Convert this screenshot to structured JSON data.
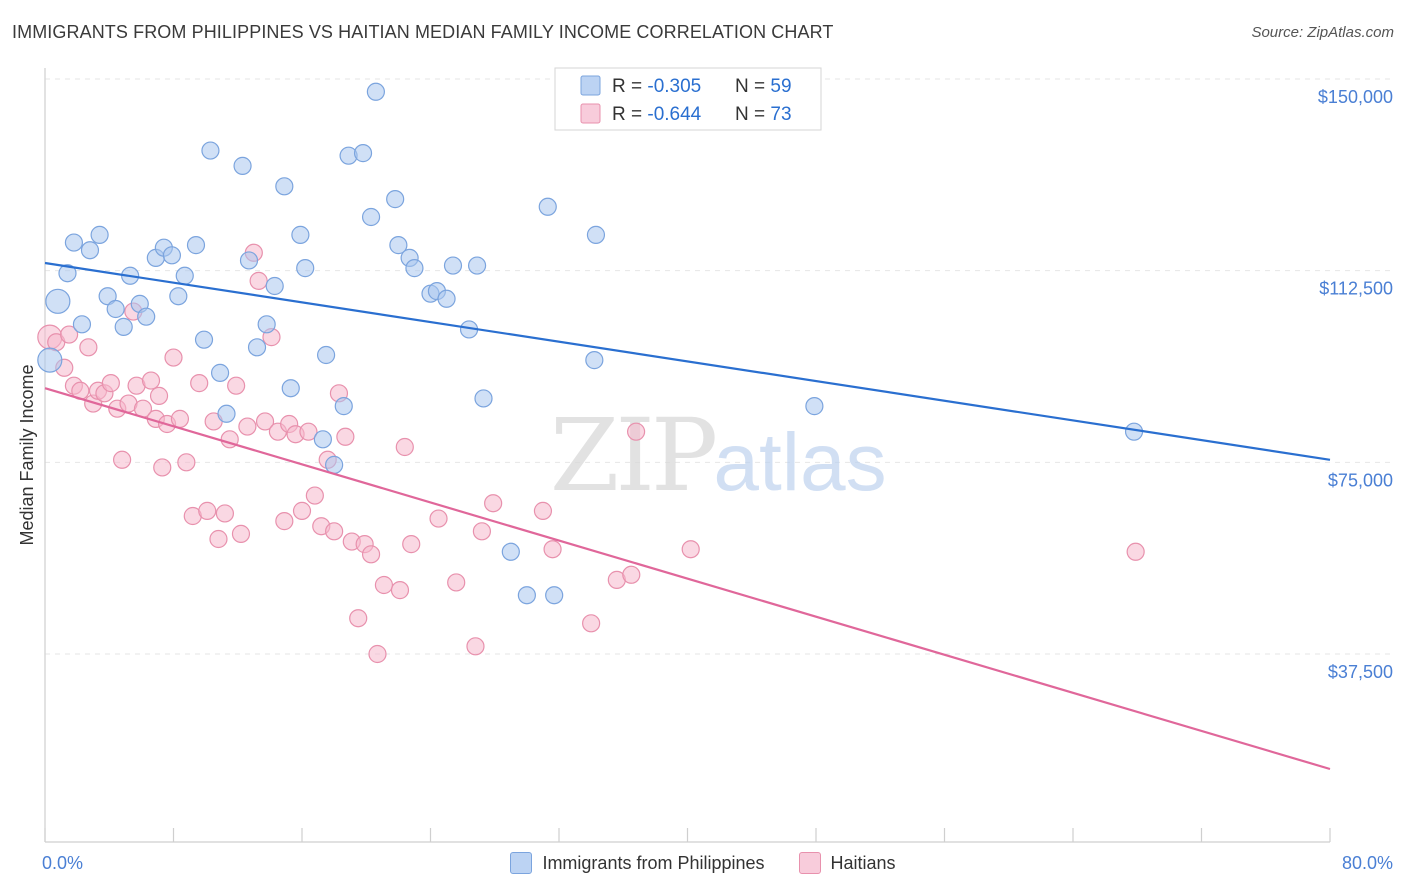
{
  "title": "IMMIGRANTS FROM PHILIPPINES VS HAITIAN MEDIAN FAMILY INCOME CORRELATION CHART",
  "source": "Source: ZipAtlas.com",
  "watermark": {
    "zip": "ZIP",
    "atlas": "atlas"
  },
  "colors": {
    "blue_fill": "#a9c6ef",
    "blue_stroke": "#7ba4de",
    "blue_line": "#2a6fd0",
    "pink_fill": "#f5b8cc",
    "pink_stroke": "#e891ad",
    "pink_line": "#e0679a",
    "tick_blue": "#4a7fd4",
    "grid": "#e6e6e6"
  },
  "legend_top": {
    "rows": [
      {
        "series": "Immigrants from Philippines",
        "r_label": "R = ",
        "r_value": "-0.305",
        "n_label": "N = ",
        "n_value": "59"
      },
      {
        "series": "Haitians",
        "r_label": "R = ",
        "r_value": "-0.644",
        "n_label": "N = ",
        "n_value": "73"
      }
    ]
  },
  "chart_data": {
    "type": "scatter",
    "title": "IMMIGRANTS FROM PHILIPPINES VS HAITIAN MEDIAN FAMILY INCOME CORRELATION CHART",
    "xlabel": "",
    "ylabel": "Median Family Income",
    "xlim": [
      0,
      80
    ],
    "ylim": [
      0,
      155000
    ],
    "x_tick_labels": [
      "0.0%",
      "80.0%"
    ],
    "y_ticks": [
      37500,
      75000,
      112500,
      150000
    ],
    "y_tick_labels": [
      "$37,500",
      "$75,000",
      "$112,500",
      "$150,000"
    ],
    "grid": true,
    "legend_position": "top-center",
    "series": [
      {
        "name": "Immigrants from Philippines",
        "color": "#a9c6ef",
        "r": -0.305,
        "n": 59,
        "trend": {
          "x": [
            0,
            80
          ],
          "y": [
            114000,
            75500
          ]
        },
        "points": [
          {
            "x": 0.3,
            "y": 95000,
            "big": true
          },
          {
            "x": 0.8,
            "y": 106500,
            "big": true
          },
          {
            "x": 1.4,
            "y": 112000
          },
          {
            "x": 1.8,
            "y": 118000
          },
          {
            "x": 2.3,
            "y": 102000
          },
          {
            "x": 2.8,
            "y": 116500
          },
          {
            "x": 3.4,
            "y": 119500
          },
          {
            "x": 3.9,
            "y": 107500
          },
          {
            "x": 4.4,
            "y": 105000
          },
          {
            "x": 4.9,
            "y": 101500
          },
          {
            "x": 5.3,
            "y": 111500
          },
          {
            "x": 5.9,
            "y": 106000
          },
          {
            "x": 6.3,
            "y": 103500
          },
          {
            "x": 6.9,
            "y": 115000
          },
          {
            "x": 7.4,
            "y": 117000
          },
          {
            "x": 7.9,
            "y": 115500
          },
          {
            "x": 8.3,
            "y": 107500
          },
          {
            "x": 8.7,
            "y": 111500
          },
          {
            "x": 9.4,
            "y": 117500
          },
          {
            "x": 9.9,
            "y": 99000
          },
          {
            "x": 10.3,
            "y": 136000
          },
          {
            "x": 10.9,
            "y": 92500
          },
          {
            "x": 11.3,
            "y": 84500
          },
          {
            "x": 12.3,
            "y": 133000
          },
          {
            "x": 12.7,
            "y": 114500
          },
          {
            "x": 13.2,
            "y": 97500
          },
          {
            "x": 13.8,
            "y": 102000
          },
          {
            "x": 14.3,
            "y": 109500
          },
          {
            "x": 14.9,
            "y": 129000
          },
          {
            "x": 15.3,
            "y": 89500
          },
          {
            "x": 15.9,
            "y": 119500
          },
          {
            "x": 16.2,
            "y": 113000
          },
          {
            "x": 17.5,
            "y": 96000
          },
          {
            "x": 18.0,
            "y": 74500
          },
          {
            "x": 18.6,
            "y": 86000
          },
          {
            "x": 18.9,
            "y": 135000
          },
          {
            "x": 19.8,
            "y": 135500
          },
          {
            "x": 20.3,
            "y": 123000
          },
          {
            "x": 20.6,
            "y": 147500
          },
          {
            "x": 21.8,
            "y": 126500
          },
          {
            "x": 22.0,
            "y": 117500
          },
          {
            "x": 22.7,
            "y": 115000
          },
          {
            "x": 23.0,
            "y": 113000
          },
          {
            "x": 24.0,
            "y": 108000
          },
          {
            "x": 24.4,
            "y": 108500
          },
          {
            "x": 25.0,
            "y": 107000
          },
          {
            "x": 25.4,
            "y": 113500
          },
          {
            "x": 26.4,
            "y": 101000
          },
          {
            "x": 26.9,
            "y": 113500
          },
          {
            "x": 27.3,
            "y": 87500
          },
          {
            "x": 29.0,
            "y": 57500
          },
          {
            "x": 30.0,
            "y": 49000
          },
          {
            "x": 31.3,
            "y": 125000
          },
          {
            "x": 31.7,
            "y": 49000
          },
          {
            "x": 34.2,
            "y": 95000
          },
          {
            "x": 34.3,
            "y": 119500
          },
          {
            "x": 47.9,
            "y": 86000
          },
          {
            "x": 67.8,
            "y": 81000
          },
          {
            "x": 17.3,
            "y": 79500
          }
        ]
      },
      {
        "name": "Haitians",
        "color": "#f5b8cc",
        "r": -0.644,
        "n": 73,
        "trend": {
          "x": [
            0,
            80
          ],
          "y": [
            89500,
            15000
          ]
        },
        "points": [
          {
            "x": 0.3,
            "y": 99500,
            "big": true
          },
          {
            "x": 0.7,
            "y": 98500
          },
          {
            "x": 1.2,
            "y": 93500
          },
          {
            "x": 1.5,
            "y": 100000
          },
          {
            "x": 1.8,
            "y": 90000
          },
          {
            "x": 2.2,
            "y": 89000
          },
          {
            "x": 2.7,
            "y": 97500
          },
          {
            "x": 3.0,
            "y": 86500
          },
          {
            "x": 3.3,
            "y": 89000
          },
          {
            "x": 3.7,
            "y": 88500
          },
          {
            "x": 4.1,
            "y": 90500
          },
          {
            "x": 4.5,
            "y": 85500
          },
          {
            "x": 4.8,
            "y": 75500
          },
          {
            "x": 5.2,
            "y": 86500
          },
          {
            "x": 5.5,
            "y": 104500
          },
          {
            "x": 5.7,
            "y": 90000
          },
          {
            "x": 6.1,
            "y": 85500
          },
          {
            "x": 6.6,
            "y": 91000
          },
          {
            "x": 6.9,
            "y": 83500
          },
          {
            "x": 7.3,
            "y": 74000
          },
          {
            "x": 7.6,
            "y": 82500
          },
          {
            "x": 8.0,
            "y": 95500
          },
          {
            "x": 8.4,
            "y": 83500
          },
          {
            "x": 8.8,
            "y": 75000
          },
          {
            "x": 9.2,
            "y": 64500
          },
          {
            "x": 9.6,
            "y": 90500
          },
          {
            "x": 10.1,
            "y": 65500
          },
          {
            "x": 10.5,
            "y": 83000
          },
          {
            "x": 10.8,
            "y": 60000
          },
          {
            "x": 11.2,
            "y": 65000
          },
          {
            "x": 11.5,
            "y": 79500
          },
          {
            "x": 11.9,
            "y": 90000
          },
          {
            "x": 12.2,
            "y": 61000
          },
          {
            "x": 12.6,
            "y": 82000
          },
          {
            "x": 13.0,
            "y": 116000
          },
          {
            "x": 13.3,
            "y": 110500
          },
          {
            "x": 13.7,
            "y": 83000
          },
          {
            "x": 14.1,
            "y": 99500
          },
          {
            "x": 14.5,
            "y": 81000
          },
          {
            "x": 14.9,
            "y": 63500
          },
          {
            "x": 15.2,
            "y": 82500
          },
          {
            "x": 15.6,
            "y": 80500
          },
          {
            "x": 16.0,
            "y": 65500
          },
          {
            "x": 16.4,
            "y": 81000
          },
          {
            "x": 16.8,
            "y": 68500
          },
          {
            "x": 17.2,
            "y": 62500
          },
          {
            "x": 17.6,
            "y": 75500
          },
          {
            "x": 18.0,
            "y": 61500
          },
          {
            "x": 18.3,
            "y": 88500
          },
          {
            "x": 18.7,
            "y": 80000
          },
          {
            "x": 19.1,
            "y": 59500
          },
          {
            "x": 19.5,
            "y": 44500
          },
          {
            "x": 19.9,
            "y": 59000
          },
          {
            "x": 20.3,
            "y": 57000
          },
          {
            "x": 20.7,
            "y": 37500
          },
          {
            "x": 21.1,
            "y": 51000
          },
          {
            "x": 22.1,
            "y": 50000
          },
          {
            "x": 22.4,
            "y": 78000
          },
          {
            "x": 22.8,
            "y": 59000
          },
          {
            "x": 24.5,
            "y": 64000
          },
          {
            "x": 25.6,
            "y": 51500
          },
          {
            "x": 26.8,
            "y": 39000
          },
          {
            "x": 27.2,
            "y": 61500
          },
          {
            "x": 27.9,
            "y": 67000
          },
          {
            "x": 31.0,
            "y": 65500
          },
          {
            "x": 31.6,
            "y": 58000
          },
          {
            "x": 34.0,
            "y": 43500
          },
          {
            "x": 35.6,
            "y": 52000
          },
          {
            "x": 36.5,
            "y": 53000
          },
          {
            "x": 36.8,
            "y": 81000
          },
          {
            "x": 40.2,
            "y": 58000
          },
          {
            "x": 67.9,
            "y": 57500
          },
          {
            "x": 7.1,
            "y": 88000
          }
        ]
      }
    ]
  }
}
